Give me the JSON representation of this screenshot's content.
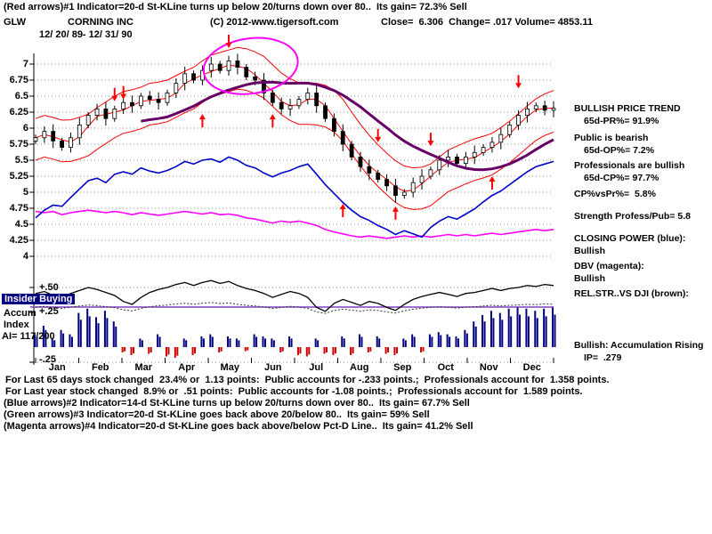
{
  "header": {
    "red_arrows_line": "(Red arrows)#1 Indicator=20-d St-KLine turns up below 20/turns down over 80..  Its gain= 72.3% Sell",
    "symbol": "GLW",
    "company": "CORNING INC",
    "copyright": "(C) 2012-www.tigersoft.com",
    "quote": "Close=  6.306  Change= .017 Volume= 4853.11",
    "date_range": "12/ 20/ 89- 12/ 31/ 90"
  },
  "right_panel": {
    "trend_title": "BULLISH PRICE TREND",
    "pr": "65d-PR%= 91.9%",
    "public_sentiment": "Public is bearish",
    "op": "65d-OP%= 7.2%",
    "professional_sentiment": "Professionals are bullish",
    "cp": "65d-CP%= 97.7%",
    "cp_vs_pr": "CP%vsPr%=  5.8%",
    "strength": "Strength Profess/Pub= 5.8",
    "closing_power_label": "CLOSING POWER (blue):",
    "closing_power_status": "Bullish",
    "dbv_label": "DBV (magenta):",
    "dbv_status": "Bullish",
    "rel_str_label": "REL.STR..VS DJI (brown):",
    "accumulation_note": "Bullish: Accumulation Rising",
    "ip": "IP=  .279"
  },
  "sidebar": {
    "insider_label": "Insider Buying",
    "accum_label": "Accum",
    "index_label": "Index",
    "ai_value": "AI= 117/200",
    "plus50": "+.50",
    "plus25": "+.25",
    "minus25": "-.25"
  },
  "footer": {
    "lines": [
      "For Last 65 days stock changed  23.4% or  1.13 points:  Public accounts for -.233 points.;  Professionals account for  1.358 points.",
      "For Last year stock changed  8.9% or  .51 points:  Public accounts for -1.08 points.;  Professionals account for  1.589 points.",
      "(Blue arrows)#2 Indicator=14-d St-KLine turns up below 20/turns down over 80..  Its gain= 67.7% Sell",
      "(Green arrows)#3 Indicator=20-d St-KLine goes back above 20/below 80..  Its gain= 59% Sell",
      "(Magenta arrows)#4 Indicator=20-d St-KLine goes back above/below Pct-D Line..  Its gain= 41.2% Sell"
    ]
  },
  "chart_data": {
    "type": "candlestick",
    "title": "GLW CORNING INC 12/20/89 - 12/31/90",
    "close": 6.306,
    "change": 0.017,
    "volume": 4853.11,
    "months": [
      "Jan",
      "Feb",
      "Mar",
      "Apr",
      "May",
      "Jun",
      "Jul",
      "Aug",
      "Sep",
      "Oct",
      "Nov",
      "Dec"
    ],
    "y_ticks": [
      "7",
      "6.75",
      "6.5",
      "6.25",
      "6",
      "5.75",
      "5.5",
      "5.25",
      "5",
      "4.75",
      "4.5",
      "4.25",
      "4"
    ],
    "lower_ticks": [
      "+.50",
      "+.25",
      "-.25"
    ],
    "price_ylim": [
      4,
      7.1
    ],
    "lower_ylim": [
      -0.5,
      0.6
    ],
    "series": {
      "price_close": [
        5.85,
        5.95,
        5.8,
        5.7,
        5.85,
        6.05,
        6.2,
        6.3,
        6.15,
        6.3,
        6.4,
        6.35,
        6.5,
        6.45,
        6.4,
        6.55,
        6.7,
        6.85,
        6.75,
        6.9,
        7.0,
        6.9,
        7.05,
        6.95,
        6.8,
        6.75,
        6.55,
        6.4,
        6.3,
        6.35,
        6.45,
        6.55,
        6.35,
        6.15,
        5.95,
        5.75,
        5.55,
        5.4,
        5.3,
        5.2,
        5.1,
        4.95,
        5.0,
        5.15,
        5.25,
        5.35,
        5.5,
        5.55,
        5.45,
        5.55,
        5.62,
        5.7,
        5.78,
        5.9,
        6.05,
        6.2,
        6.3,
        6.35,
        6.28,
        6.31
      ],
      "closing_power": [
        4.6,
        4.72,
        4.8,
        4.78,
        4.92,
        5.05,
        5.18,
        5.22,
        5.15,
        5.28,
        5.32,
        5.28,
        5.38,
        5.33,
        5.3,
        5.34,
        5.4,
        5.48,
        5.44,
        5.5,
        5.52,
        5.47,
        5.55,
        5.5,
        5.42,
        5.38,
        5.3,
        5.24,
        5.3,
        5.34,
        5.4,
        5.44,
        5.28,
        5.12,
        4.98,
        4.84,
        4.72,
        4.62,
        4.56,
        4.48,
        4.42,
        4.34,
        4.4,
        4.35,
        4.3,
        4.45,
        4.55,
        4.62,
        4.58,
        4.66,
        4.74,
        4.85,
        4.95,
        5.02,
        5.12,
        5.22,
        5.32,
        5.4,
        5.44,
        5.48
      ],
      "dbv": [
        4.7,
        4.68,
        4.7,
        4.65,
        4.68,
        4.7,
        4.72,
        4.7,
        4.68,
        4.7,
        4.68,
        4.65,
        4.68,
        4.66,
        4.64,
        4.66,
        4.68,
        4.7,
        4.68,
        4.66,
        4.68,
        4.65,
        4.66,
        4.64,
        4.6,
        4.58,
        4.55,
        4.52,
        4.55,
        4.53,
        4.55,
        4.52,
        4.48,
        4.42,
        4.38,
        4.35,
        4.32,
        4.3,
        4.32,
        4.3,
        4.28,
        4.3,
        4.32,
        4.3,
        4.32,
        4.3,
        4.32,
        4.34,
        4.32,
        4.34,
        4.32,
        4.34,
        4.36,
        4.34,
        4.36,
        4.38,
        4.4,
        4.42,
        4.4,
        4.42
      ],
      "rel_str_vs_dji": [
        0.44,
        0.46,
        0.42,
        0.4,
        0.44,
        0.47,
        0.5,
        0.48,
        0.45,
        0.42,
        0.36,
        0.33,
        0.4,
        0.45,
        0.48,
        0.5,
        0.53,
        0.55,
        0.52,
        0.55,
        0.57,
        0.54,
        0.56,
        0.52,
        0.49,
        0.47,
        0.44,
        0.4,
        0.43,
        0.46,
        0.44,
        0.4,
        0.3,
        0.26,
        0.34,
        0.38,
        0.35,
        0.32,
        0.36,
        0.34,
        0.3,
        0.27,
        0.33,
        0.38,
        0.41,
        0.43,
        0.45,
        0.43,
        0.41,
        0.44,
        0.45,
        0.47,
        0.49,
        0.47,
        0.49,
        0.5,
        0.52,
        0.51,
        0.53,
        0.52
      ],
      "accum_index": [
        0.3,
        0.5,
        0.2,
        0.4,
        0.3,
        0.8,
        0.9,
        0.7,
        0.85,
        0.6,
        -0.2,
        -0.3,
        0.2,
        -0.25,
        0.3,
        -0.35,
        -0.4,
        0.2,
        -0.3,
        0.25,
        0.3,
        -0.2,
        0.25,
        0.2,
        -0.15,
        0.3,
        0.25,
        0.2,
        -0.2,
        0.25,
        -0.3,
        -0.35,
        0.2,
        -0.25,
        -0.3,
        0.25,
        -0.3,
        0.3,
        -0.2,
        0.25,
        -0.25,
        -0.3,
        0.2,
        0.3,
        -0.2,
        0.3,
        0.35,
        0.3,
        0.25,
        0.4,
        0.6,
        0.75,
        0.85,
        0.8,
        0.9,
        0.95,
        0.9,
        0.85,
        0.9,
        0.95
      ]
    },
    "arrows": {
      "down": [
        {
          "i": 9,
          "p": 6.42
        },
        {
          "i": 10,
          "p": 6.45
        },
        {
          "i": 22,
          "p": 7.25
        },
        {
          "i": 39,
          "p": 5.78
        },
        {
          "i": 45,
          "p": 5.72
        },
        {
          "i": 55,
          "p": 6.62
        }
      ],
      "up": [
        {
          "i": 19,
          "p": 6.22
        },
        {
          "i": 27,
          "p": 6.22
        },
        {
          "i": 35,
          "p": 4.82
        },
        {
          "i": 41,
          "p": 4.78
        },
        {
          "i": 52,
          "p": 5.25
        }
      ]
    },
    "highlight_ellipse": {
      "i": 24.5,
      "p": 6.97,
      "ri": 5.4,
      "rp": 0.43
    },
    "colors": {
      "band": "#FF0000",
      "ma": "#660066",
      "closing_power": "#0000CC",
      "dbv": "#FF00FF",
      "rel_str": "#000000",
      "accum_pos": "#000080",
      "accum_neg": "#CC0000",
      "baseline": "#8040C0",
      "arrow": "#FF0000",
      "ellipse": "#FF00FF"
    }
  }
}
